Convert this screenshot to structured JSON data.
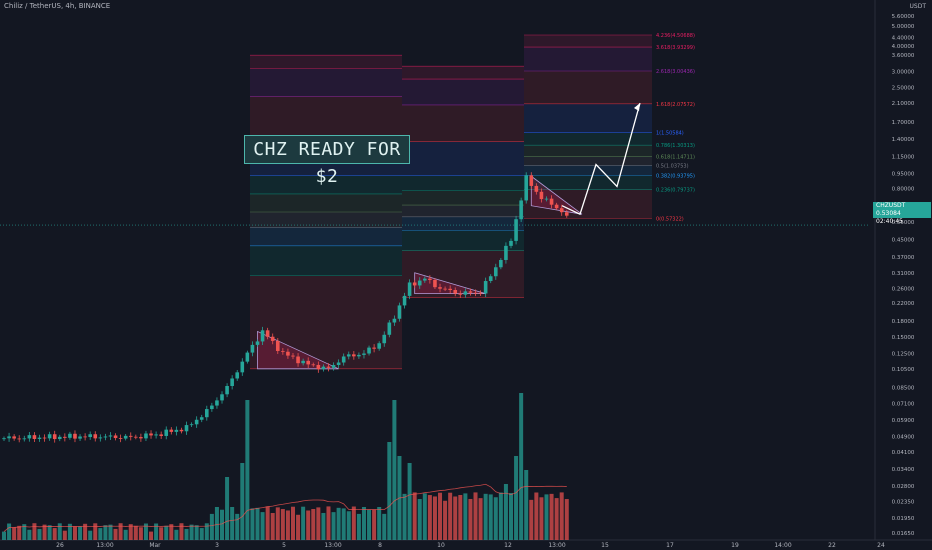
{
  "header": {
    "symbol_line": "Chiliz / TetherUS, 4h, BINANCE",
    "currency": "USDT"
  },
  "banner": {
    "text": "CHZ READY FOR $2"
  },
  "price_tag": {
    "symbol": "CHZUSDT",
    "price": "0.53084",
    "countdown": "02:40:45"
  },
  "colors": {
    "background": "#131722",
    "up": "#26a69a",
    "down": "#ef5350",
    "accent": "#4db6ac",
    "projection": "#ffffff",
    "volume_ma": "#ef5350"
  },
  "chart_data": {
    "type": "candlestick",
    "scale": "log",
    "interval": "4h",
    "ylim": [
      0.0165,
      5.6
    ],
    "y_ticks": [
      "5.60000",
      "5.00000",
      "4.40000",
      "4.00000",
      "3.60000",
      "3.00000",
      "2.50000",
      "2.10000",
      "1.70000",
      "1.40000",
      "1.15000",
      "0.95000",
      "0.80000",
      "0.55000",
      "0.45000",
      "0.37000",
      "0.31000",
      "0.26000",
      "0.22000",
      "0.18000",
      "0.15000",
      "0.12500",
      "0.10500",
      "0.08500",
      "0.07100",
      "0.05900",
      "0.04900",
      "0.04100",
      "0.03400",
      "0.02800",
      "0.02350",
      "0.01950",
      "0.01650"
    ],
    "x_ticks": [
      {
        "label": "26",
        "x": 60
      },
      {
        "label": "13:00",
        "x": 105
      },
      {
        "label": "Mar",
        "x": 155
      },
      {
        "label": "3",
        "x": 217
      },
      {
        "label": "5",
        "x": 284
      },
      {
        "label": "13:00",
        "x": 333
      },
      {
        "label": "8",
        "x": 380
      },
      {
        "label": "10",
        "x": 441
      },
      {
        "label": "12",
        "x": 508
      },
      {
        "label": "13:00",
        "x": 557
      },
      {
        "label": "15",
        "x": 605
      },
      {
        "label": "17",
        "x": 670
      },
      {
        "label": "19",
        "x": 735
      },
      {
        "label": "14:00",
        "x": 783
      },
      {
        "label": "22",
        "x": 832
      },
      {
        "label": "24",
        "x": 881
      }
    ],
    "close_anchors": [
      {
        "idx": 0,
        "p": 0.048
      },
      {
        "idx": 15,
        "p": 0.049
      },
      {
        "idx": 25,
        "p": 0.0485
      },
      {
        "idx": 30,
        "p": 0.05
      },
      {
        "idx": 36,
        "p": 0.054
      },
      {
        "idx": 40,
        "p": 0.065
      },
      {
        "idx": 44,
        "p": 0.085
      },
      {
        "idx": 48,
        "p": 0.125
      },
      {
        "idx": 51,
        "p": 0.16
      },
      {
        "idx": 55,
        "p": 0.125
      },
      {
        "idx": 60,
        "p": 0.11
      },
      {
        "idx": 64,
        "p": 0.105
      },
      {
        "idx": 67,
        "p": 0.12
      },
      {
        "idx": 71,
        "p": 0.125
      },
      {
        "idx": 74,
        "p": 0.14
      },
      {
        "idx": 77,
        "p": 0.19
      },
      {
        "idx": 80,
        "p": 0.27
      },
      {
        "idx": 83,
        "p": 0.29
      },
      {
        "idx": 86,
        "p": 0.26
      },
      {
        "idx": 90,
        "p": 0.245
      },
      {
        "idx": 94,
        "p": 0.25
      },
      {
        "idx": 97,
        "p": 0.33
      },
      {
        "idx": 100,
        "p": 0.45
      },
      {
        "idx": 103,
        "p": 0.9
      },
      {
        "idx": 106,
        "p": 0.72
      },
      {
        "idx": 109,
        "p": 0.65
      },
      {
        "idx": 111,
        "p": 0.58
      }
    ],
    "volume_spikes": [
      {
        "idx": 48,
        "v": 1.0
      },
      {
        "idx": 47,
        "v": 0.55
      },
      {
        "idx": 77,
        "v": 1.0
      },
      {
        "idx": 76,
        "v": 0.7
      },
      {
        "idx": 78,
        "v": 0.6
      },
      {
        "idx": 80,
        "v": 0.55
      },
      {
        "idx": 102,
        "v": 1.05
      },
      {
        "idx": 101,
        "v": 0.6
      },
      {
        "idx": 103,
        "v": 0.5
      },
      {
        "idx": 44,
        "v": 0.45
      },
      {
        "idx": 99,
        "v": 0.4
      }
    ],
    "fib_sets": [
      {
        "from": 0.105,
        "to": 0.93,
        "levels": [
          0,
          0.236,
          0.382,
          0.5,
          0.618,
          0.786,
          1,
          1.618,
          2.618,
          3.618,
          4.236
        ]
      },
      {
        "from": 0.235,
        "to": 0.93,
        "levels": [
          0,
          0.236,
          0.382,
          0.5,
          0.618,
          0.786,
          1,
          1.618,
          2.618,
          3.618,
          4.236
        ]
      },
      {
        "from": 0.573,
        "to": 1.505,
        "levels": [
          0,
          0.236,
          0.382,
          0.5,
          0.618,
          0.786,
          1,
          1.618,
          2.618,
          3.618,
          4.236
        ],
        "labels": [
          "0(0.57322)",
          "0.236(0.79737)",
          "0.382(0.93795)",
          "0.5(1.03753)",
          "0.618(1.14711)",
          "0.786(1.30313)",
          "1(1.50584)",
          "1.618(2.07572)",
          "2.618(3.00436)",
          "3.618(3.93299)",
          "4.236(4.50688)"
        ]
      }
    ],
    "triangles": [
      {
        "start": [
          0.16,
          0.105
        ],
        "end": 0.105
      },
      {
        "start": [
          0.31,
          0.245
        ],
        "end": 0.245
      },
      {
        "start": [
          0.92,
          0.66
        ],
        "end": 0.6
      }
    ],
    "projection": [
      0.66,
      0.6,
      1.05,
      0.82,
      2.1
    ]
  }
}
